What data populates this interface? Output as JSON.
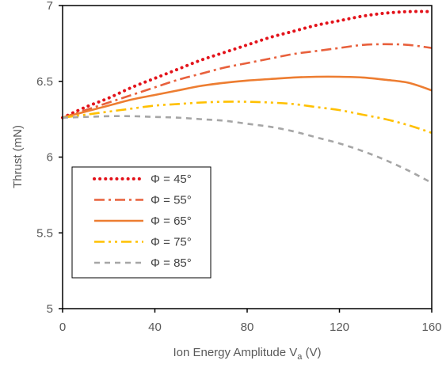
{
  "chart_data": {
    "type": "line",
    "title": "",
    "xlabel": "Ion Energy Amplitude V",
    "xlabel_sub": "a",
    "xlabel_unit": " (V)",
    "ylabel": "Thrust (mN)",
    "xlim": [
      0,
      160
    ],
    "ylim": [
      5,
      7
    ],
    "xticks": [
      0,
      40,
      80,
      120,
      160
    ],
    "xtick_labels": [
      "0",
      "40",
      "80",
      "120",
      "160"
    ],
    "yticks": [
      5,
      5.5,
      6,
      6.5,
      7
    ],
    "ytick_labels": [
      "5",
      "5.5",
      "6",
      "6.5",
      "7"
    ],
    "grid": false,
    "legend_position": "bottom-left",
    "x": [
      0,
      10,
      20,
      30,
      40,
      50,
      60,
      70,
      80,
      90,
      100,
      110,
      120,
      130,
      140,
      150,
      160
    ],
    "series": [
      {
        "name": "Φ = 45°",
        "color": "#e3131b",
        "dash": "dotted",
        "values": [
          6.26,
          6.33,
          6.39,
          6.46,
          6.52,
          6.58,
          6.64,
          6.69,
          6.74,
          6.79,
          6.83,
          6.87,
          6.9,
          6.93,
          6.95,
          6.96,
          6.96
        ]
      },
      {
        "name": "Φ = 55°",
        "color": "#e8603c",
        "dash": "dashdot",
        "values": [
          6.26,
          6.31,
          6.36,
          6.41,
          6.46,
          6.51,
          6.55,
          6.59,
          6.62,
          6.65,
          6.68,
          6.7,
          6.72,
          6.74,
          6.745,
          6.74,
          6.72
        ]
      },
      {
        "name": "Φ = 65°",
        "color": "#ed7d31",
        "dash": "solid",
        "values": [
          6.26,
          6.3,
          6.34,
          6.38,
          6.41,
          6.44,
          6.47,
          6.49,
          6.505,
          6.515,
          6.525,
          6.53,
          6.53,
          6.525,
          6.51,
          6.49,
          6.44
        ]
      },
      {
        "name": "Φ = 75°",
        "color": "#ffc000",
        "dash": "dashdotdot",
        "values": [
          6.26,
          6.28,
          6.3,
          6.32,
          6.34,
          6.35,
          6.36,
          6.365,
          6.365,
          6.36,
          6.35,
          6.33,
          6.31,
          6.28,
          6.25,
          6.21,
          6.16
        ]
      },
      {
        "name": "Φ = 85°",
        "color": "#a6a6a6",
        "dash": "dashed",
        "values": [
          6.26,
          6.265,
          6.27,
          6.27,
          6.265,
          6.26,
          6.25,
          6.24,
          6.22,
          6.2,
          6.17,
          6.13,
          6.09,
          6.04,
          5.98,
          5.91,
          5.83
        ]
      }
    ]
  }
}
